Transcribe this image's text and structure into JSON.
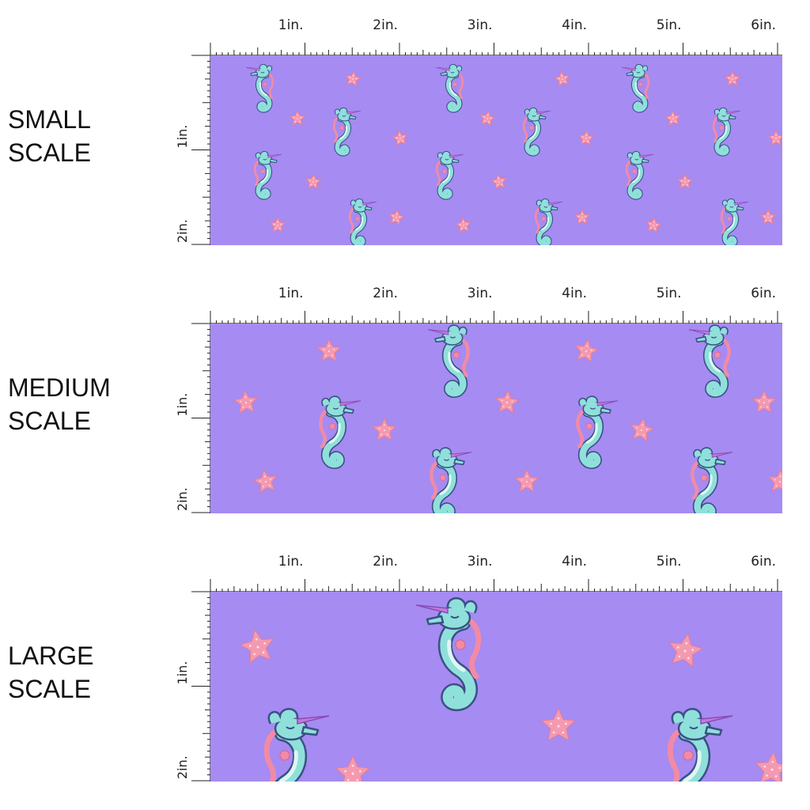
{
  "colors": {
    "background": "#a58bf2",
    "seahorse_body": "#8fe0da",
    "seahorse_outline": "#3c4f86",
    "mane": "#f28aa6",
    "horn": "#c47adf",
    "star": "#f49ab0",
    "star_dots": "#ffe1ea",
    "ruler": "#222222"
  },
  "ruler": {
    "x_labels": [
      "1in.",
      "2in.",
      "3in.",
      "4in.",
      "5in.",
      "6in."
    ],
    "y_labels": [
      "1in.",
      "2in."
    ]
  },
  "panels": [
    {
      "label": "SMALL\nSCALE",
      "motif_scale": 0.42,
      "star_size": 20,
      "horse_size": 60
    },
    {
      "label": "MEDIUM\nSCALE",
      "motif_scale": 0.65,
      "star_size": 30,
      "horse_size": 90
    },
    {
      "label": "LARGE\nSCALE",
      "motif_scale": 1.0,
      "star_size": 44,
      "horse_size": 140
    }
  ],
  "icons": {
    "motif": "unicorn-seahorse-icon",
    "accent": "starfish-icon"
  }
}
